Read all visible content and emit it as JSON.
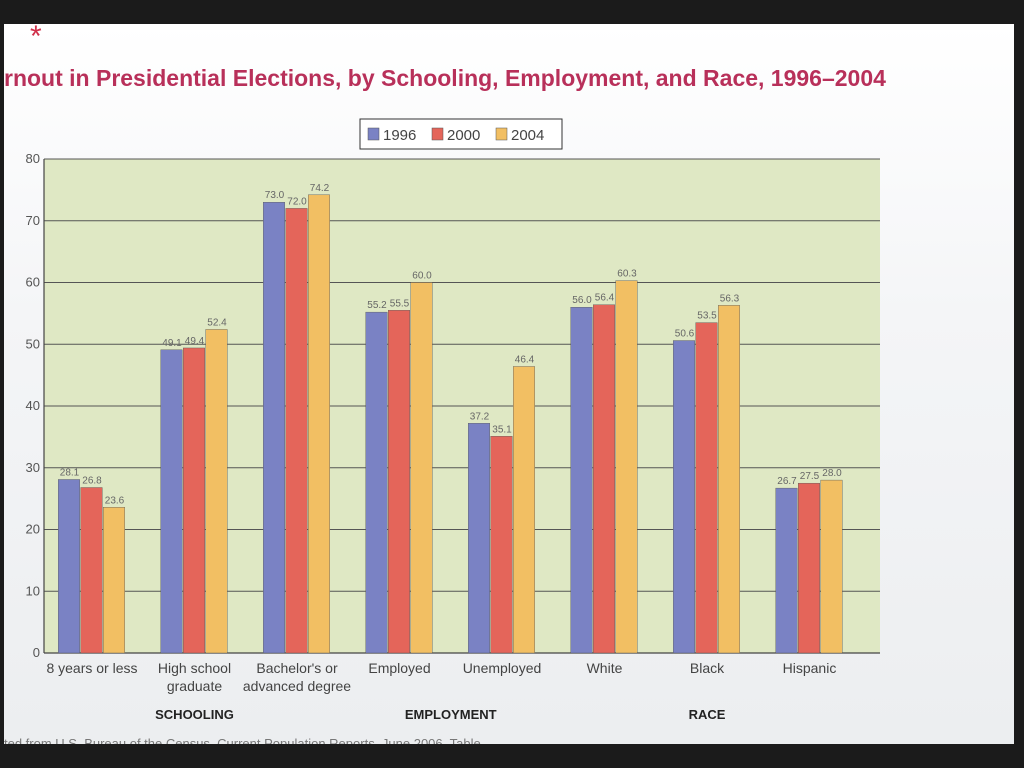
{
  "page": {
    "mark": "*",
    "footer_fragment": "ted from U.S. Bureau of the Census, Current Population Reports, June 2006, Table"
  },
  "chart_data": {
    "type": "bar",
    "title": "rnout in Presidential Elections, by Schooling, Employment, and Race, 1996–2004",
    "categories": [
      [
        "8 years or less"
      ],
      [
        "High school",
        "graduate"
      ],
      [
        "Bachelor's or",
        "advanced degree"
      ],
      [
        "Employed"
      ],
      [
        "Unemployed"
      ],
      [
        "White"
      ],
      [
        "Black"
      ],
      [
        "Hispanic"
      ]
    ],
    "groups": [
      {
        "label": "SCHOOLING",
        "categories": [
          0,
          1,
          2
        ]
      },
      {
        "label": "EMPLOYMENT",
        "categories": [
          3,
          4
        ]
      },
      {
        "label": "RACE",
        "categories": [
          5,
          6,
          7
        ]
      }
    ],
    "series": [
      {
        "name": "1996",
        "color": "#7a82c4",
        "values": [
          28.1,
          49.1,
          73.0,
          55.2,
          37.2,
          56.0,
          50.6,
          26.7
        ]
      },
      {
        "name": "2000",
        "color": "#e4655a",
        "values": [
          26.8,
          49.4,
          72.0,
          55.5,
          35.1,
          56.4,
          53.5,
          27.5
        ]
      },
      {
        "name": "2004",
        "color": "#f2bf63",
        "values": [
          23.6,
          52.4,
          74.2,
          60.0,
          46.4,
          60.3,
          56.3,
          28.0
        ]
      }
    ],
    "ylim": [
      0,
      80
    ],
    "yticks": [
      0,
      10,
      20,
      30,
      40,
      50,
      60,
      70,
      80
    ],
    "grid": true,
    "legend": "top-center",
    "plot_background": "#dfe8c4"
  }
}
